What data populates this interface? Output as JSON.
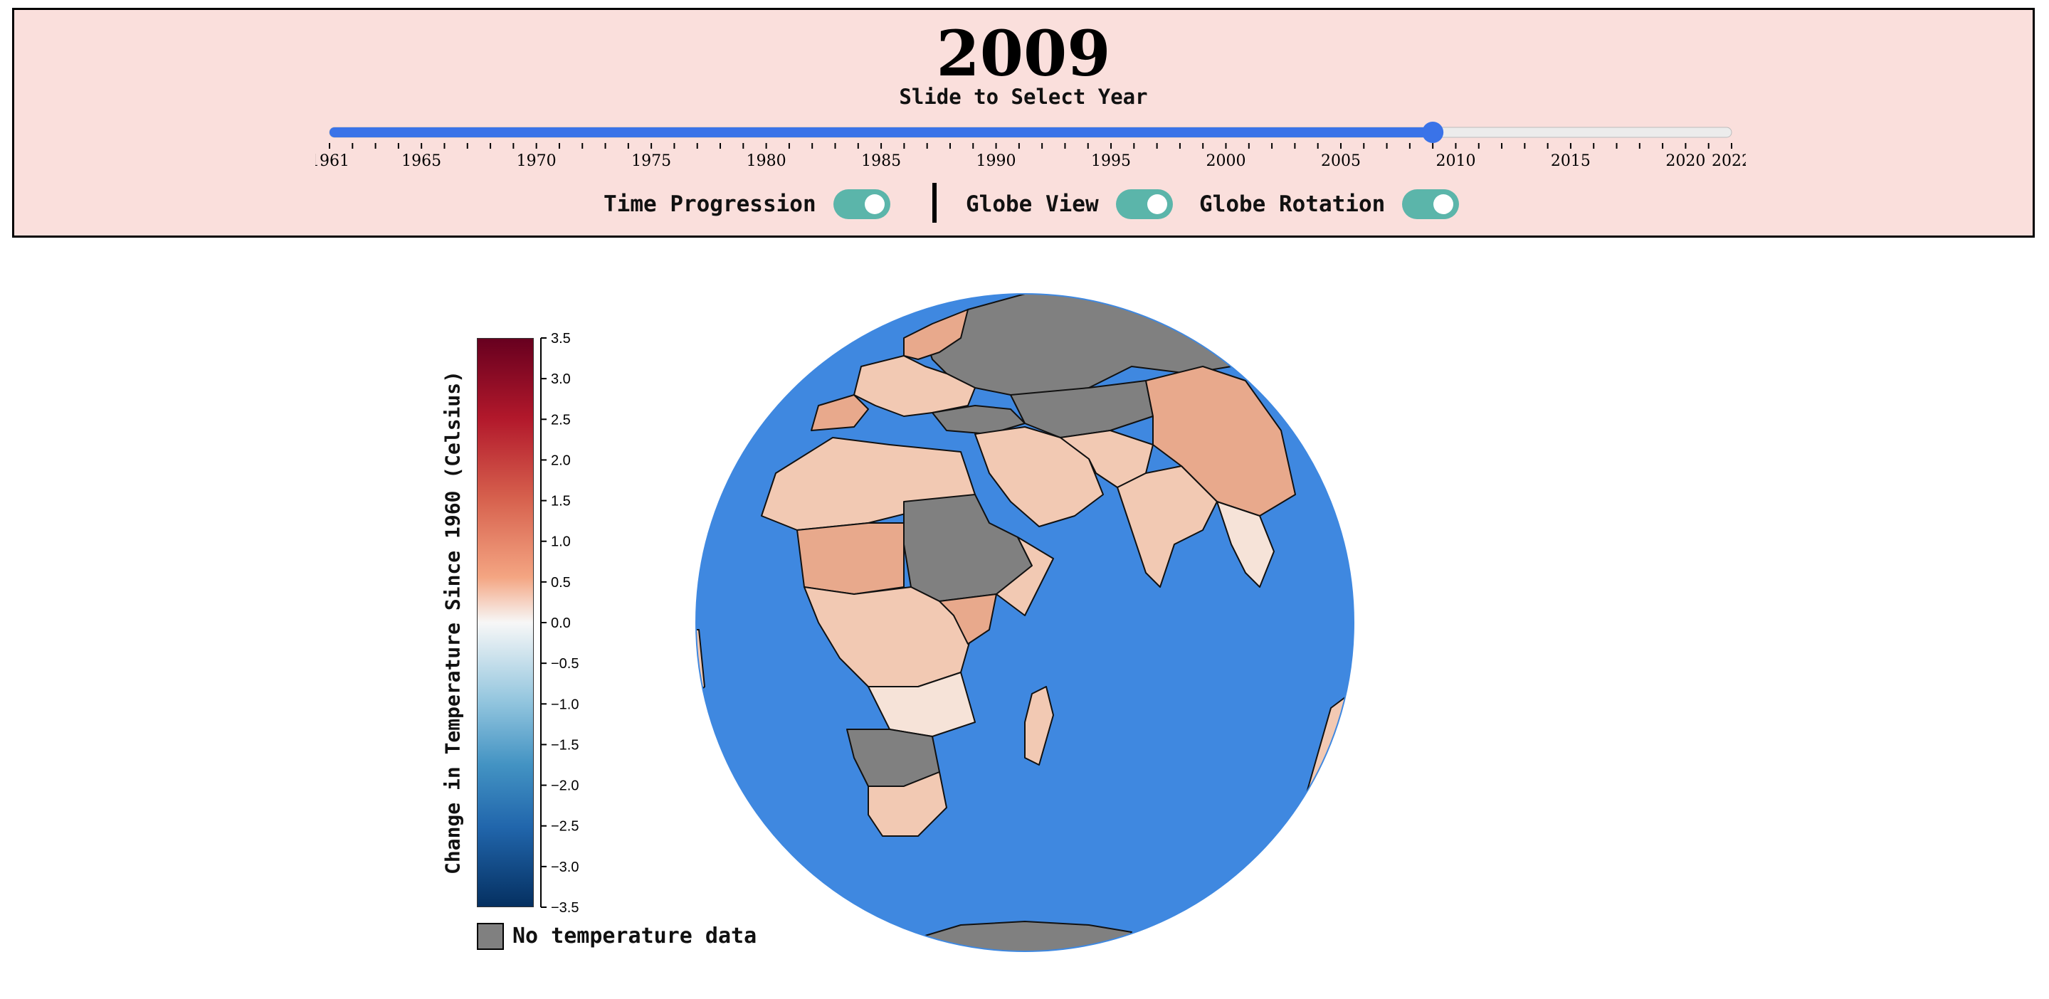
{
  "header": {
    "year": "2009",
    "slider_label": "Slide to Select Year",
    "slider": {
      "min": 1961,
      "max": 2022,
      "value": 2009,
      "tick_labels": [
        "1961",
        "1965",
        "1970",
        "1975",
        "1980",
        "1985",
        "1990",
        "1995",
        "2000",
        "2005",
        "2010",
        "2015",
        "2020",
        "2022"
      ],
      "fill_color": "#3a73e8",
      "track_color": "#ececec"
    },
    "toggles": [
      {
        "label": "Time Progression",
        "on": true
      },
      {
        "label": "Globe View",
        "on": true
      },
      {
        "label": "Globe Rotation",
        "on": true
      }
    ],
    "toggle_color": "#5bb5aa",
    "background": "#fadfdc"
  },
  "legend": {
    "title": "Change in Temperature Since 1960 (Celsius)",
    "ticks": [
      "3.5",
      "3.0",
      "2.5",
      "2.0",
      "1.5",
      "1.0",
      "0.5",
      "0.0",
      "−0.5",
      "−1.0",
      "−1.5",
      "−2.0",
      "−2.5",
      "−3.0",
      "−3.5"
    ],
    "scale_colors": [
      "#67001f",
      "#b2182b",
      "#d6604d",
      "#f4a582",
      "#f7f7f7",
      "#92c5de",
      "#4393c3",
      "#2166ac",
      "#053061"
    ],
    "no_data_label": "No temperature data",
    "no_data_color": "#808080"
  },
  "globe": {
    "ocean_color": "#3f88e0",
    "land_warm_color": "#e8a98c",
    "land_light_color": "#f2c9b3",
    "land_pale_color": "#f6e3d8",
    "no_data_color": "#808080"
  }
}
